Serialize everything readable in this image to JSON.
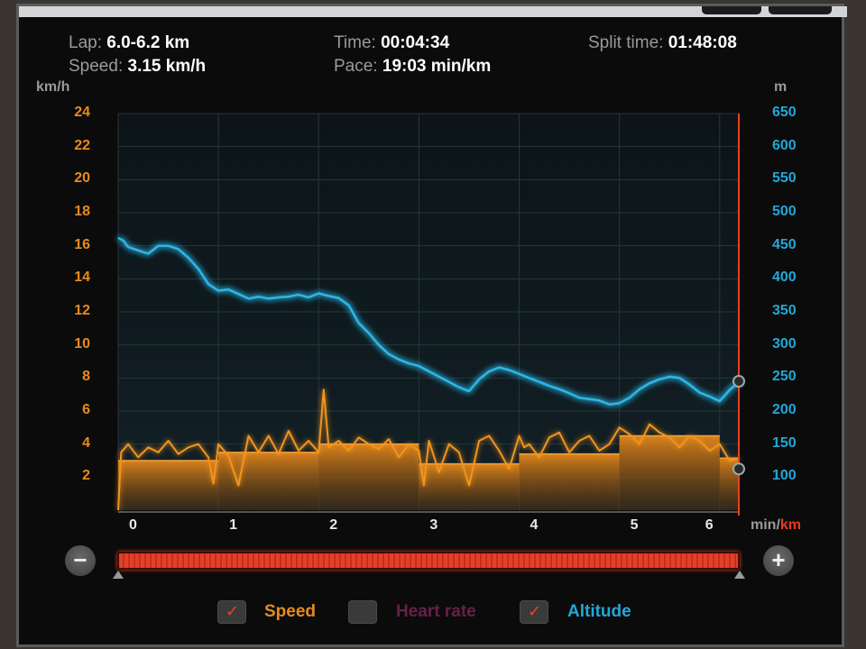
{
  "stats": {
    "lap_label": "Lap:",
    "lap_value": "6.0-6.2 km",
    "speed_label": "Speed:",
    "speed_value": "3.15 km/h",
    "time_label": "Time:",
    "time_value": "00:04:34",
    "pace_label": "Pace:",
    "pace_value": "19:03 min/km",
    "split_label": "Split time:",
    "split_value": "01:48:08"
  },
  "axes": {
    "left_unit": "km/h",
    "right_unit": "m",
    "x_unit_prefix": "min/",
    "x_unit_suffix": "km"
  },
  "zoom": {
    "minus_label": "−",
    "plus_label": "+"
  },
  "legend": [
    {
      "label": "Speed",
      "checked": true,
      "color": "#e98a1e"
    },
    {
      "label": "Heart rate",
      "checked": false,
      "color": "#6a1f4a"
    },
    {
      "label": "Altitude",
      "checked": true,
      "color": "#23a7d6"
    }
  ],
  "icons": {
    "check": "✓"
  },
  "colors": {
    "speed": "#f2941f",
    "altitude": "#2fb6e6",
    "marker": "#e8401e"
  },
  "chart_data": {
    "type": "line",
    "x_label": "km",
    "xlim": [
      0,
      6.2
    ],
    "x_ticks": [
      0,
      1,
      2,
      3,
      4,
      5,
      6
    ],
    "left_axis": {
      "unit": "km/h",
      "ylim": [
        0,
        24
      ],
      "ticks": [
        2,
        4,
        6,
        8,
        10,
        12,
        14,
        16,
        18,
        20,
        22,
        24
      ]
    },
    "right_axis": {
      "unit": "m",
      "ylim": [
        50,
        650
      ],
      "ticks": [
        100,
        150,
        200,
        250,
        300,
        350,
        400,
        450,
        500,
        550,
        600,
        650
      ]
    },
    "marker_x": 6.2,
    "series": [
      {
        "name": "Speed",
        "axis": "left",
        "x": [
          0,
          0.03,
          0.1,
          0.2,
          0.3,
          0.4,
          0.5,
          0.6,
          0.7,
          0.8,
          0.9,
          0.95,
          1.0,
          1.1,
          1.2,
          1.3,
          1.4,
          1.5,
          1.6,
          1.7,
          1.8,
          1.9,
          2.0,
          2.05,
          2.1,
          2.2,
          2.3,
          2.4,
          2.5,
          2.6,
          2.7,
          2.8,
          2.9,
          3.0,
          3.05,
          3.1,
          3.2,
          3.3,
          3.4,
          3.5,
          3.6,
          3.7,
          3.8,
          3.9,
          4.0,
          4.05,
          4.1,
          4.2,
          4.3,
          4.4,
          4.5,
          4.6,
          4.7,
          4.8,
          4.9,
          5.0,
          5.1,
          5.2,
          5.3,
          5.4,
          5.5,
          5.6,
          5.7,
          5.8,
          5.9,
          6.0,
          6.1,
          6.2
        ],
        "values": [
          0,
          3.5,
          4.0,
          3.2,
          3.8,
          3.5,
          4.2,
          3.4,
          3.8,
          4.0,
          3.2,
          1.6,
          4.0,
          3.3,
          1.5,
          4.5,
          3.5,
          4.5,
          3.4,
          4.8,
          3.6,
          4.2,
          3.5,
          7.3,
          3.8,
          4.2,
          3.6,
          4.4,
          4.0,
          3.7,
          4.3,
          3.2,
          4.0,
          3.6,
          1.5,
          4.2,
          2.3,
          4.0,
          3.5,
          1.5,
          4.2,
          4.5,
          3.6,
          2.5,
          4.5,
          3.8,
          4.0,
          3.2,
          4.4,
          4.7,
          3.5,
          4.2,
          4.5,
          3.6,
          4.0,
          5.0,
          4.6,
          4.0,
          5.2,
          4.7,
          4.4,
          3.8,
          4.5,
          4.2,
          3.6,
          4.0,
          3.0,
          3.15
        ]
      },
      {
        "name": "Altitude",
        "axis": "right",
        "x": [
          0,
          0.05,
          0.1,
          0.2,
          0.3,
          0.4,
          0.5,
          0.6,
          0.7,
          0.8,
          0.9,
          1.0,
          1.1,
          1.2,
          1.3,
          1.4,
          1.5,
          1.6,
          1.7,
          1.8,
          1.9,
          2.0,
          2.1,
          2.2,
          2.3,
          2.4,
          2.5,
          2.6,
          2.7,
          2.8,
          2.9,
          3.0,
          3.1,
          3.2,
          3.3,
          3.4,
          3.5,
          3.6,
          3.7,
          3.8,
          3.9,
          4.0,
          4.1,
          4.2,
          4.3,
          4.4,
          4.5,
          4.6,
          4.7,
          4.8,
          4.9,
          5.0,
          5.1,
          5.2,
          5.3,
          5.4,
          5.5,
          5.6,
          5.7,
          5.8,
          5.9,
          6.0,
          6.1,
          6.2
        ],
        "values": [
          462,
          458,
          448,
          443,
          438,
          450,
          450,
          445,
          432,
          415,
          392,
          382,
          384,
          377,
          370,
          373,
          370,
          372,
          373,
          376,
          372,
          378,
          374,
          371,
          360,
          333,
          318,
          300,
          286,
          278,
          272,
          268,
          260,
          252,
          244,
          236,
          230,
          248,
          260,
          266,
          262,
          256,
          250,
          244,
          238,
          233,
          227,
          220,
          218,
          216,
          210,
          212,
          220,
          233,
          242,
          248,
          252,
          250,
          240,
          228,
          222,
          215,
          232,
          245
        ]
      }
    ],
    "speed_laps": [
      {
        "x0": 0.0,
        "x1": 1.0,
        "value": 3.0
      },
      {
        "x0": 1.0,
        "x1": 2.0,
        "value": 3.5
      },
      {
        "x0": 2.0,
        "x1": 3.0,
        "value": 4.0
      },
      {
        "x0": 3.0,
        "x1": 4.0,
        "value": 2.8
      },
      {
        "x0": 4.0,
        "x1": 5.0,
        "value": 3.4
      },
      {
        "x0": 5.0,
        "x1": 6.0,
        "value": 4.5
      },
      {
        "x0": 6.0,
        "x1": 6.2,
        "value": 3.15
      }
    ]
  }
}
